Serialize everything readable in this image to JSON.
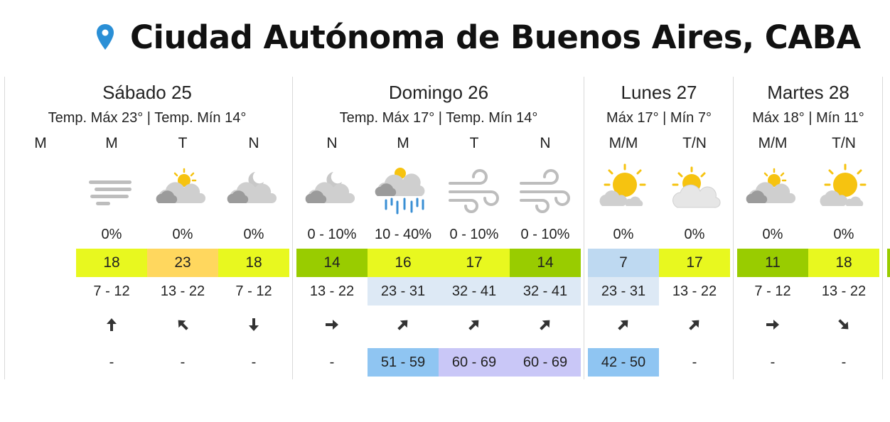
{
  "header": {
    "location": "Ciudad Autónoma de Buenos Aires, CABA",
    "location_icon": "map-pin-icon"
  },
  "colors": {
    "pin": "#2a8fd6",
    "temp_23": "#ffd75e",
    "temp_18": "#e8f81f",
    "temp_17": "#e8f81f",
    "temp_16": "#e8f81f",
    "temp_14": "#99cc00",
    "temp_11": "#99cc00",
    "temp_7": "#bed9f1",
    "wind_light": "#ffffff",
    "wind_moderate": "#dde9f5",
    "gust_low": "#8fc5f2",
    "gust_mid": "#c9c7f7"
  },
  "days": [
    {
      "name": "Sábado 25",
      "temps": "Temp. Máx 23° | Temp. Mín 14°",
      "periods": [
        {
          "label": "M",
          "icon": "",
          "precip": "",
          "feels": "",
          "feels_color": "",
          "wind": "",
          "wind_bg": "",
          "dir": "",
          "gust": "",
          "gust_bg": ""
        },
        {
          "label": "M",
          "icon": "fog-icon",
          "precip": "0%",
          "feels": "18",
          "feels_color": "#e8f81f",
          "wind": "7 - 12",
          "wind_bg": "#ffffff",
          "dir": "north-arrow-icon",
          "gust": "-",
          "gust_bg": ""
        },
        {
          "label": "T",
          "icon": "partly-cloudy-day-icon",
          "precip": "0%",
          "feels": "23",
          "feels_color": "#ffd75e",
          "wind": "13 - 22",
          "wind_bg": "#ffffff",
          "dir": "northwest-arrow-icon",
          "gust": "-",
          "gust_bg": ""
        },
        {
          "label": "N",
          "icon": "partly-cloudy-night-icon",
          "precip": "0%",
          "feels": "18",
          "feels_color": "#e8f81f",
          "wind": "7 - 12",
          "wind_bg": "#ffffff",
          "dir": "south-arrow-icon",
          "gust": "-",
          "gust_bg": ""
        }
      ]
    },
    {
      "name": "Domingo 26",
      "temps": "Temp. Máx 17° | Temp. Mín 14°",
      "periods": [
        {
          "label": "N",
          "icon": "partly-cloudy-night-icon",
          "precip": "0 - 10%",
          "feels": "14",
          "feels_color": "#99cc00",
          "wind": "13 - 22",
          "wind_bg": "#ffffff",
          "dir": "east-arrow-icon",
          "gust": "-",
          "gust_bg": ""
        },
        {
          "label": "M",
          "icon": "rain-icon",
          "precip": "10 - 40%",
          "feels": "16",
          "feels_color": "#e8f81f",
          "wind": "23 - 31",
          "wind_bg": "#dde9f5",
          "dir": "northeast-arrow-icon",
          "gust": "51 - 59",
          "gust_bg": "#8fc5f2"
        },
        {
          "label": "T",
          "icon": "wind-icon",
          "precip": "0 - 10%",
          "feels": "17",
          "feels_color": "#e8f81f",
          "wind": "32 - 41",
          "wind_bg": "#dde9f5",
          "dir": "northeast-arrow-icon",
          "gust": "60 - 69",
          "gust_bg": "#c9c7f7"
        },
        {
          "label": "N",
          "icon": "wind-icon",
          "precip": "0 - 10%",
          "feels": "14",
          "feels_color": "#99cc00",
          "wind": "32 - 41",
          "wind_bg": "#dde9f5",
          "dir": "northeast-arrow-icon",
          "gust": "60 - 69",
          "gust_bg": "#c9c7f7"
        }
      ]
    },
    {
      "name": "Lunes 27",
      "temps": "Máx 17° | Mín 7°",
      "periods": [
        {
          "label": "M/M",
          "icon": "sun-cloud-icon",
          "precip": "0%",
          "feels": "7",
          "feels_color": "#bed9f1",
          "wind": "23 - 31",
          "wind_bg": "#dde9f5",
          "dir": "northeast-arrow-icon",
          "gust": "42 - 50",
          "gust_bg": "#8fc5f2"
        },
        {
          "label": "T/N",
          "icon": "cloud-sun-icon",
          "precip": "0%",
          "feels": "17",
          "feels_color": "#e8f81f",
          "wind": "13 - 22",
          "wind_bg": "#ffffff",
          "dir": "northeast-arrow-icon",
          "gust": "-",
          "gust_bg": ""
        }
      ]
    },
    {
      "name": "Martes 28",
      "temps": "Máx 18° | Mín 11°",
      "periods": [
        {
          "label": "M/M",
          "icon": "partly-cloudy-day-icon",
          "precip": "0%",
          "feels": "11",
          "feels_color": "#99cc00",
          "wind": "7 - 12",
          "wind_bg": "#ffffff",
          "dir": "east-arrow-icon",
          "gust": "-",
          "gust_bg": ""
        },
        {
          "label": "T/N",
          "icon": "sun-cloud-icon",
          "precip": "0%",
          "feels": "18",
          "feels_color": "#e8f81f",
          "wind": "13 - 22",
          "wind_bg": "#ffffff",
          "dir": "southeast-arrow-icon",
          "gust": "-",
          "gust_bg": ""
        }
      ]
    }
  ]
}
